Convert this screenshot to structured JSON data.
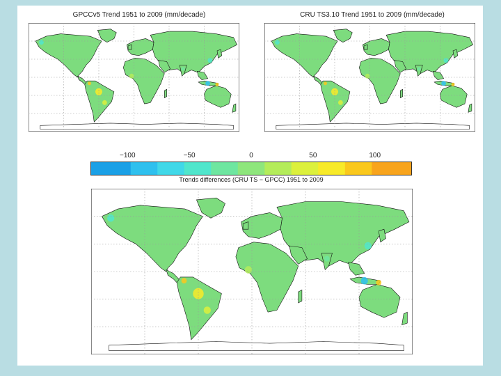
{
  "maps": [
    {
      "id": "gpcc",
      "title": "GPCCv5 Trend 1951 to 2009 (mm/decade)"
    },
    {
      "id": "cru",
      "title": "CRU TS3.10 Trend 1951 to 2009 (mm/decade)"
    },
    {
      "id": "diff",
      "title": ""
    }
  ],
  "colorbar": {
    "ticks": [
      "−100",
      "−50",
      "0",
      "50",
      "100"
    ],
    "tick_values": [
      -100,
      -50,
      0,
      50,
      100
    ],
    "range": [
      -130,
      130
    ],
    "caption": "Trends differences (CRU TS − GPCC) 1951 to 2009",
    "colors": [
      "#1aa0e6",
      "#2ec0ee",
      "#40d8e8",
      "#50e6cc",
      "#6ee6a0",
      "#8ee67c",
      "#b4ec5a",
      "#dcf03c",
      "#f8ea28",
      "#fac81c",
      "#f8a41c"
    ]
  },
  "colors": {
    "land": "#7ddc7e",
    "background": "#b9dde3",
    "panel": "#ffffff",
    "grid": "#9a9a9a",
    "coast": "#111111"
  }
}
